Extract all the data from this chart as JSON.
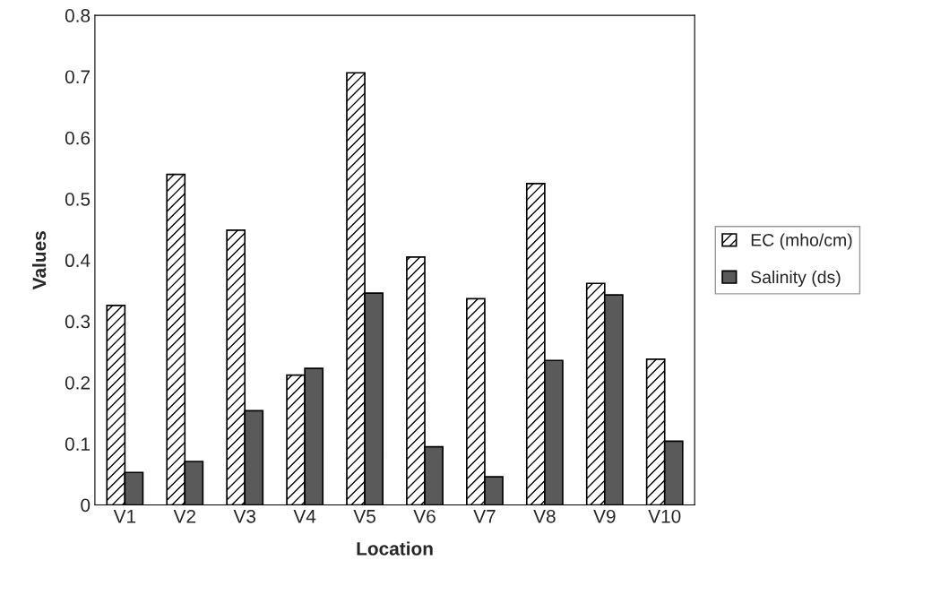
{
  "chart_data": {
    "type": "bar",
    "xlabel": "Location",
    "ylabel": "Values",
    "categories": [
      "V1",
      "V2",
      "V3",
      "V4",
      "V5",
      "V6",
      "V7",
      "V8",
      "V9",
      "V10"
    ],
    "series": [
      {
        "name": "EC (mho/cm)",
        "color": "#000000",
        "values": [
          0.326,
          0.54,
          0.449,
          0.212,
          0.706,
          0.405,
          0.337,
          0.525,
          0.362,
          0.238
        ]
      },
      {
        "name": "Salinity (ds)",
        "color": "#5a5a5a",
        "values": [
          0.053,
          0.071,
          0.154,
          0.223,
          0.346,
          0.095,
          0.046,
          0.236,
          0.343,
          0.104
        ]
      }
    ],
    "ylim": [
      0,
      0.8
    ],
    "yticks": [
      0,
      0.1,
      0.2,
      0.3,
      0.4,
      0.5,
      0.6,
      0.7,
      0.8
    ],
    "grid": false,
    "legend": "right"
  }
}
